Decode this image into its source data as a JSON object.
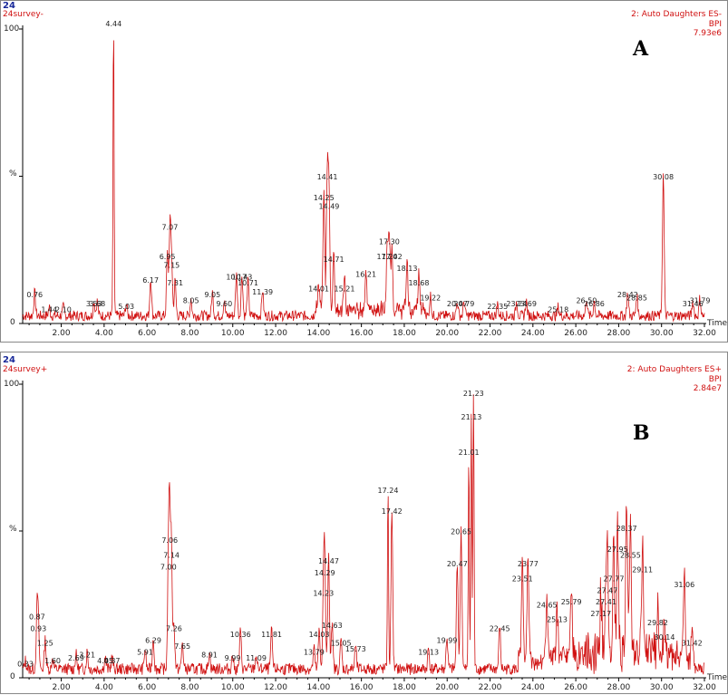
{
  "panels": [
    {
      "id_label": "24",
      "sample": "24survey-",
      "scan": "2: Auto Daughters ES-",
      "mode": "BPI",
      "intensity": "7.93e6",
      "letter": "A",
      "y_top": "100",
      "y_mid": "%",
      "y_zero": "0",
      "x_label": "Time"
    },
    {
      "id_label": "24",
      "sample": "24survey+",
      "scan": "2: Auto Daughters ES+",
      "mode": "BPI",
      "intensity": "2.84e7",
      "letter": "B",
      "y_top": "100",
      "y_mid": "%",
      "y_zero": "0",
      "x_label": "Time"
    }
  ],
  "chart_data": [
    {
      "type": "line",
      "title": "",
      "xlabel": "Time",
      "ylabel": "%",
      "xlim": [
        0.2,
        32.0
      ],
      "ylim": [
        0,
        100
      ],
      "x_ticks": [
        "2.00",
        "4.00",
        "6.00",
        "8.00",
        "10.00",
        "12.00",
        "14.00",
        "16.00",
        "18.00",
        "20.00",
        "22.00",
        "24.00",
        "26.00",
        "28.00",
        "30.00",
        "32.00"
      ],
      "x_tick_values": [
        2,
        4,
        6,
        8,
        10,
        12,
        14,
        16,
        18,
        20,
        22,
        24,
        26,
        28,
        30,
        32
      ],
      "peaks": [
        {
          "label": "0.76",
          "x": 0.76,
          "y": 8
        },
        {
          "label": "1.44",
          "x": 1.44,
          "y": 3
        },
        {
          "label": "2.10",
          "x": 2.1,
          "y": 3
        },
        {
          "label": "3.53",
          "x": 3.53,
          "y": 5
        },
        {
          "label": "3.68",
          "x": 3.68,
          "y": 5
        },
        {
          "label": "4.44",
          "x": 4.44,
          "y": 100
        },
        {
          "label": "5.03",
          "x": 5.03,
          "y": 4
        },
        {
          "label": "6.17",
          "x": 6.17,
          "y": 13
        },
        {
          "label": "6.95",
          "x": 6.95,
          "y": 21
        },
        {
          "label": "7.07",
          "x": 7.07,
          "y": 31
        },
        {
          "label": "7.15",
          "x": 7.15,
          "y": 18
        },
        {
          "label": "7.31",
          "x": 7.31,
          "y": 12
        },
        {
          "label": "8.05",
          "x": 8.05,
          "y": 6
        },
        {
          "label": "9.05",
          "x": 9.05,
          "y": 8
        },
        {
          "label": "9.60",
          "x": 9.6,
          "y": 5
        },
        {
          "label": "10.17",
          "x": 10.17,
          "y": 14
        },
        {
          "label": "10.43",
          "x": 10.43,
          "y": 14
        },
        {
          "label": "10.71",
          "x": 10.71,
          "y": 12
        },
        {
          "label": "11.39",
          "x": 11.39,
          "y": 9
        },
        {
          "label": "14.01",
          "x": 14.01,
          "y": 10
        },
        {
          "label": "14.25",
          "x": 14.25,
          "y": 41
        },
        {
          "label": "14.41",
          "x": 14.41,
          "y": 48
        },
        {
          "label": "14.49",
          "x": 14.49,
          "y": 38
        },
        {
          "label": "14.71",
          "x": 14.71,
          "y": 20
        },
        {
          "label": "15.21",
          "x": 15.21,
          "y": 10
        },
        {
          "label": "16.21",
          "x": 16.21,
          "y": 15
        },
        {
          "label": "17.20",
          "x": 17.2,
          "y": 21
        },
        {
          "label": "17.30",
          "x": 17.3,
          "y": 26
        },
        {
          "label": "17.42",
          "x": 17.42,
          "y": 21
        },
        {
          "label": "18.13",
          "x": 18.13,
          "y": 17
        },
        {
          "label": "18.68",
          "x": 18.68,
          "y": 12
        },
        {
          "label": "19.22",
          "x": 19.22,
          "y": 7
        },
        {
          "label": "20.47",
          "x": 20.47,
          "y": 5
        },
        {
          "label": "20.79",
          "x": 20.79,
          "y": 5
        },
        {
          "label": "22.35",
          "x": 22.35,
          "y": 4
        },
        {
          "label": "23.24",
          "x": 23.24,
          "y": 5
        },
        {
          "label": "23.69",
          "x": 23.69,
          "y": 5
        },
        {
          "label": "25.18",
          "x": 25.18,
          "y": 3
        },
        {
          "label": "26.50",
          "x": 26.5,
          "y": 6
        },
        {
          "label": "26.86",
          "x": 26.86,
          "y": 5
        },
        {
          "label": "28.42",
          "x": 28.42,
          "y": 8
        },
        {
          "label": "28.85",
          "x": 28.85,
          "y": 7
        },
        {
          "label": "30.08",
          "x": 30.08,
          "y": 48
        },
        {
          "label": "31.46",
          "x": 31.46,
          "y": 5
        },
        {
          "label": "31.79",
          "x": 31.79,
          "y": 6
        }
      ]
    },
    {
      "type": "line",
      "title": "",
      "xlabel": "Time",
      "ylabel": "%",
      "xlim": [
        0.2,
        32.0
      ],
      "ylim": [
        0,
        100
      ],
      "x_ticks": [
        "2.00",
        "4.00",
        "6.00",
        "8.00",
        "10.00",
        "12.00",
        "14.00",
        "16.00",
        "18.00",
        "20.00",
        "22.00",
        "24.00",
        "26.00",
        "28.00",
        "30.00",
        "32.00"
      ],
      "x_tick_values": [
        2,
        4,
        6,
        8,
        10,
        12,
        14,
        16,
        18,
        20,
        22,
        24,
        26,
        28,
        30,
        32
      ],
      "peaks": [
        {
          "label": "0.33",
          "x": 0.33,
          "y": 3
        },
        {
          "label": "0.87",
          "x": 0.87,
          "y": 19
        },
        {
          "label": "0.93",
          "x": 0.93,
          "y": 15
        },
        {
          "label": "1.25",
          "x": 1.25,
          "y": 10
        },
        {
          "label": "1.60",
          "x": 1.6,
          "y": 4
        },
        {
          "label": "2.69",
          "x": 2.69,
          "y": 5
        },
        {
          "label": "3.21",
          "x": 3.21,
          "y": 6
        },
        {
          "label": "4.05",
          "x": 4.05,
          "y": 4
        },
        {
          "label": "4.37",
          "x": 4.37,
          "y": 4
        },
        {
          "label": "5.91",
          "x": 5.91,
          "y": 7
        },
        {
          "label": "6.29",
          "x": 6.29,
          "y": 11
        },
        {
          "label": "7.00",
          "x": 7.0,
          "y": 36
        },
        {
          "label": "7.06",
          "x": 7.06,
          "y": 45
        },
        {
          "label": "7.14",
          "x": 7.14,
          "y": 40
        },
        {
          "label": "7.26",
          "x": 7.26,
          "y": 15
        },
        {
          "label": "7.65",
          "x": 7.65,
          "y": 9
        },
        {
          "label": "8.91",
          "x": 8.91,
          "y": 6
        },
        {
          "label": "9.99",
          "x": 9.99,
          "y": 5
        },
        {
          "label": "10.36",
          "x": 10.36,
          "y": 13
        },
        {
          "label": "11.09",
          "x": 11.09,
          "y": 5
        },
        {
          "label": "11.81",
          "x": 11.81,
          "y": 13
        },
        {
          "label": "13.79",
          "x": 13.79,
          "y": 7
        },
        {
          "label": "14.03",
          "x": 14.03,
          "y": 13
        },
        {
          "label": "14.23",
          "x": 14.23,
          "y": 27
        },
        {
          "label": "14.29",
          "x": 14.29,
          "y": 34
        },
        {
          "label": "14.47",
          "x": 14.47,
          "y": 38
        },
        {
          "label": "14.63",
          "x": 14.63,
          "y": 16
        },
        {
          "label": "15.05",
          "x": 15.05,
          "y": 10
        },
        {
          "label": "15.73",
          "x": 15.73,
          "y": 8
        },
        {
          "label": "17.24",
          "x": 17.24,
          "y": 62
        },
        {
          "label": "17.42",
          "x": 17.42,
          "y": 55
        },
        {
          "label": "19.13",
          "x": 19.13,
          "y": 7
        },
        {
          "label": "19.99",
          "x": 19.99,
          "y": 11
        },
        {
          "label": "20.47",
          "x": 20.47,
          "y": 37
        },
        {
          "label": "20.65",
          "x": 20.65,
          "y": 48
        },
        {
          "label": "21.01",
          "x": 21.01,
          "y": 75
        },
        {
          "label": "21.13",
          "x": 21.13,
          "y": 87
        },
        {
          "label": "21.23",
          "x": 21.23,
          "y": 95
        },
        {
          "label": "22.45",
          "x": 22.45,
          "y": 15
        },
        {
          "label": "23.51",
          "x": 23.51,
          "y": 32
        },
        {
          "label": "23.77",
          "x": 23.77,
          "y": 37
        },
        {
          "label": "24.65",
          "x": 24.65,
          "y": 23
        },
        {
          "label": "25.13",
          "x": 25.13,
          "y": 18
        },
        {
          "label": "25.79",
          "x": 25.79,
          "y": 24
        },
        {
          "label": "27.17",
          "x": 27.17,
          "y": 20
        },
        {
          "label": "27.41",
          "x": 27.41,
          "y": 24
        },
        {
          "label": "27.47",
          "x": 27.47,
          "y": 28
        },
        {
          "label": "27.77",
          "x": 27.77,
          "y": 32
        },
        {
          "label": "27.95",
          "x": 27.95,
          "y": 42
        },
        {
          "label": "28.37",
          "x": 28.37,
          "y": 49
        },
        {
          "label": "28.55",
          "x": 28.55,
          "y": 40
        },
        {
          "label": "29.11",
          "x": 29.11,
          "y": 35
        },
        {
          "label": "29.82",
          "x": 29.82,
          "y": 17
        },
        {
          "label": "30.14",
          "x": 30.14,
          "y": 12
        },
        {
          "label": "31.06",
          "x": 31.06,
          "y": 30
        },
        {
          "label": "31.42",
          "x": 31.42,
          "y": 10
        }
      ]
    }
  ]
}
